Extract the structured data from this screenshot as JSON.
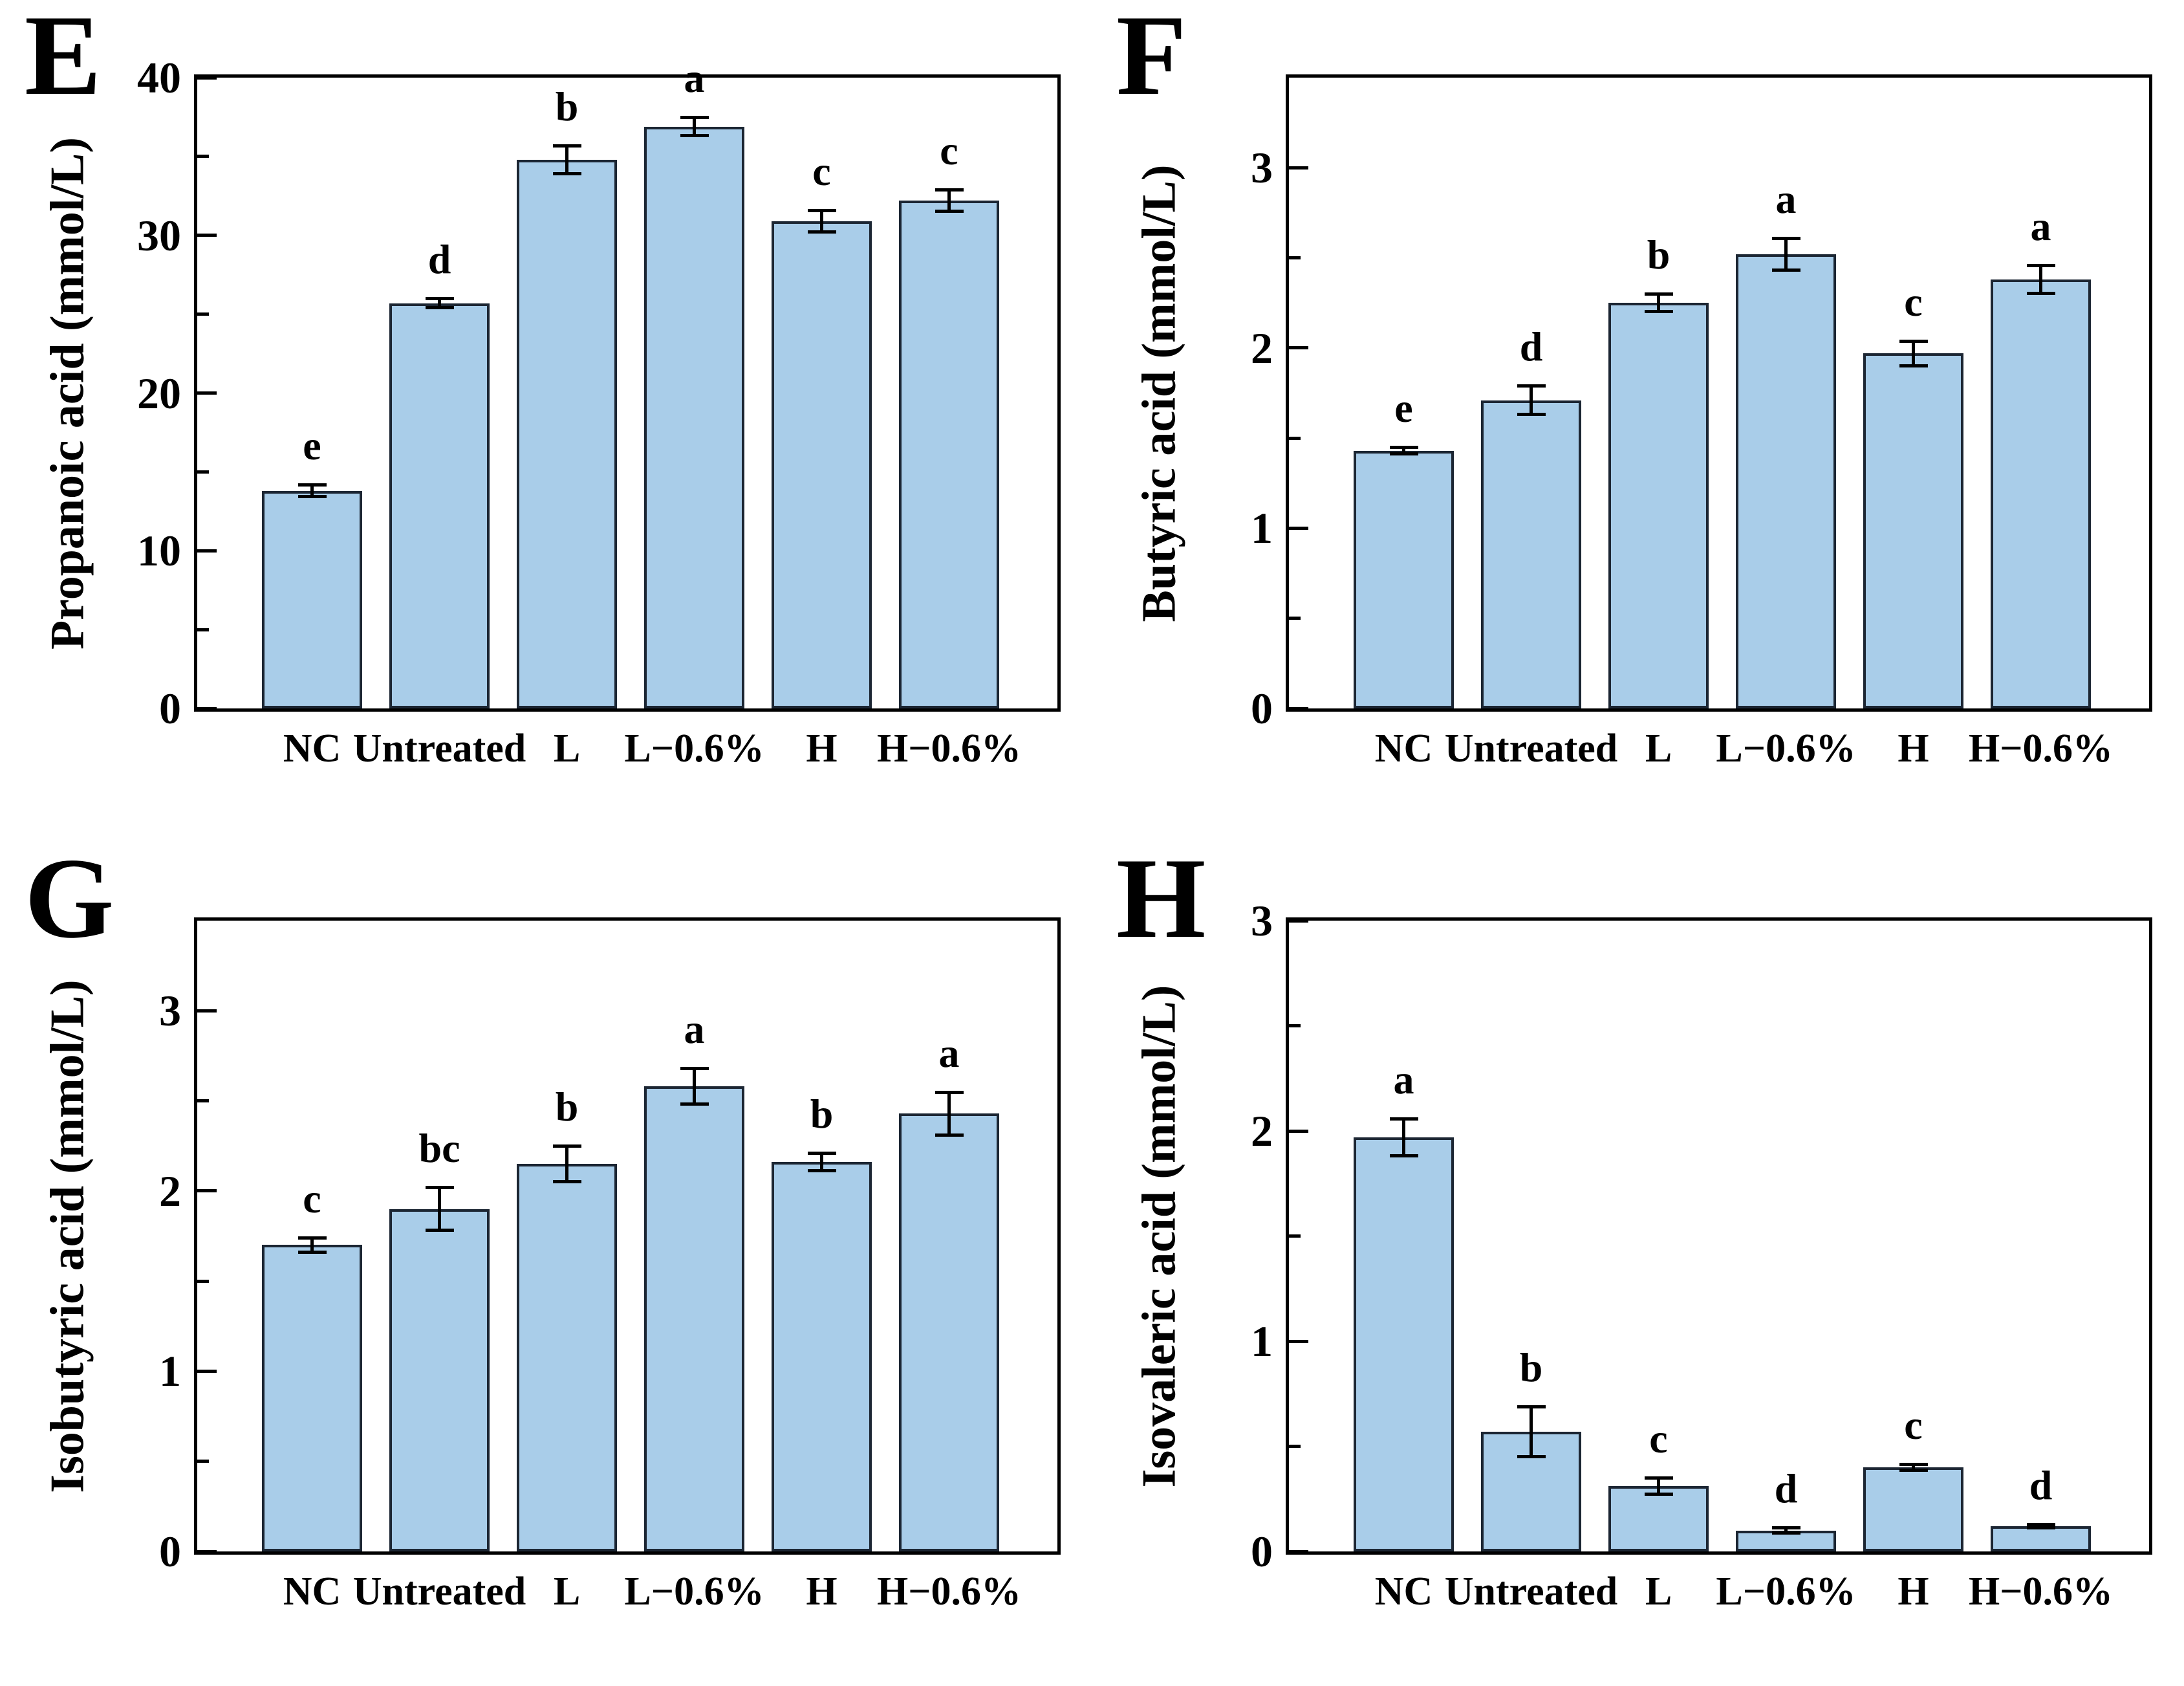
{
  "figure": {
    "background": "#ffffff",
    "description_visible_text_only": true
  },
  "style": {
    "bar_fill": "#A9CDE9",
    "bar_border": "#1C2633",
    "axis_color": "#000000",
    "text_color": "#000000"
  },
  "chart_data": [
    {
      "type": "bar",
      "panel_label": "E",
      "title": "",
      "xlabel": "",
      "ylabel": "Propanoic acid (mmol/L)",
      "ylim": [
        0,
        40
      ],
      "yticks": [
        0,
        10,
        20,
        30,
        40
      ],
      "minor_tick_step": 5,
      "grid": false,
      "legend": null,
      "categories": [
        "NC",
        "Untreated",
        "L",
        "L−0.6%",
        "H",
        "H−0.6%"
      ],
      "values": [
        13.8,
        25.7,
        34.8,
        36.9,
        30.9,
        32.2
      ],
      "errors": [
        0.4,
        0.3,
        0.9,
        0.6,
        0.7,
        0.7
      ],
      "sig_letters": [
        "e",
        "d",
        "b",
        "a",
        "c",
        "c"
      ]
    },
    {
      "type": "bar",
      "panel_label": "F",
      "title": "",
      "xlabel": "",
      "ylabel": "Butyric acid (mmol/L)",
      "ylim": [
        0,
        3.5
      ],
      "yticks": [
        0,
        1,
        2,
        3
      ],
      "minor_tick_step": 0.5,
      "grid": false,
      "legend": null,
      "categories": [
        "NC",
        "Untreated",
        "L",
        "L−0.6%",
        "H",
        "H−0.6%"
      ],
      "values": [
        1.43,
        1.71,
        2.25,
        2.52,
        1.97,
        2.38
      ],
      "errors": [
        0.02,
        0.08,
        0.05,
        0.09,
        0.07,
        0.08
      ],
      "sig_letters": [
        "e",
        "d",
        "b",
        "a",
        "c",
        "a"
      ]
    },
    {
      "type": "bar",
      "panel_label": "G",
      "title": "",
      "xlabel": "",
      "ylabel": "Isobutyric acid (mmol/L)",
      "ylim": [
        0,
        3.5
      ],
      "yticks": [
        0,
        1,
        2,
        3
      ],
      "minor_tick_step": 0.5,
      "grid": false,
      "legend": null,
      "categories": [
        "NC",
        "Untreated",
        "L",
        "L−0.6%",
        "H",
        "H−0.6%"
      ],
      "values": [
        1.7,
        1.9,
        2.15,
        2.58,
        2.16,
        2.43
      ],
      "errors": [
        0.04,
        0.12,
        0.1,
        0.1,
        0.05,
        0.12
      ],
      "sig_letters": [
        "c",
        "bc",
        "b",
        "a",
        "b",
        "a"
      ]
    },
    {
      "type": "bar",
      "panel_label": "H",
      "title": "",
      "xlabel": "",
      "ylabel": "Isovaleric acid (mmol/L)",
      "ylim": [
        0,
        3
      ],
      "yticks": [
        0,
        1,
        2,
        3
      ],
      "minor_tick_step": 0.5,
      "grid": false,
      "legend": null,
      "categories": [
        "NC",
        "Untreated",
        "L",
        "L−0.6%",
        "H",
        "H−0.6%"
      ],
      "values": [
        1.97,
        0.57,
        0.31,
        0.1,
        0.4,
        0.12
      ],
      "errors": [
        0.09,
        0.12,
        0.04,
        0.015,
        0.015,
        0.01
      ],
      "sig_letters": [
        "a",
        "b",
        "c",
        "d",
        "c",
        "d"
      ]
    }
  ]
}
